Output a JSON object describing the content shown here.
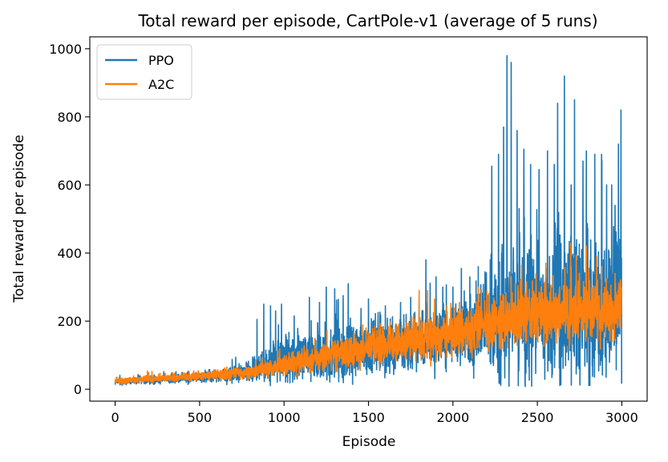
{
  "chart_data": {
    "type": "line",
    "title": "Total reward per episode, CartPole-v1 (average of 5 runs)",
    "xlabel": "Episode",
    "ylabel": "Total reward per episode",
    "xlim": [
      -150,
      3150
    ],
    "ylim": [
      -35,
      1035
    ],
    "xticks": [
      0,
      500,
      1000,
      1500,
      2000,
      2500,
      3000
    ],
    "yticks": [
      0,
      200,
      400,
      600,
      800,
      1000
    ],
    "grid": false,
    "legend_position": "top-left",
    "series": [
      {
        "name": "PPO",
        "color": "#1f77b4",
        "episodes": 3000,
        "trend": [
          [
            0,
            22
          ],
          [
            500,
            35
          ],
          [
            800,
            50
          ],
          [
            1000,
            85
          ],
          [
            1300,
            105
          ],
          [
            1600,
            125
          ],
          [
            2000,
            155
          ],
          [
            2200,
            185
          ],
          [
            2400,
            220
          ],
          [
            2700,
            240
          ],
          [
            3000,
            260
          ]
        ],
        "noise": [
          [
            0,
            8
          ],
          [
            500,
            12
          ],
          [
            800,
            25
          ],
          [
            1000,
            55
          ],
          [
            1300,
            70
          ],
          [
            1600,
            60
          ],
          [
            2000,
            70
          ],
          [
            2200,
            110
          ],
          [
            2400,
            180
          ],
          [
            2700,
            180
          ],
          [
            3000,
            170
          ]
        ],
        "peaks": [
          [
            840,
            205
          ],
          [
            880,
            250
          ],
          [
            920,
            245
          ],
          [
            950,
            230
          ],
          [
            985,
            250
          ],
          [
            1060,
            215
          ],
          [
            1150,
            270
          ],
          [
            1210,
            255
          ],
          [
            1250,
            300
          ],
          [
            1300,
            295
          ],
          [
            1350,
            275
          ],
          [
            1380,
            310
          ],
          [
            1500,
            265
          ],
          [
            1600,
            245
          ],
          [
            1690,
            255
          ],
          [
            1750,
            270
          ],
          [
            1800,
            255
          ],
          [
            1840,
            380
          ],
          [
            1900,
            330
          ],
          [
            1940,
            300
          ],
          [
            2000,
            300
          ],
          [
            2050,
            355
          ],
          [
            2100,
            330
          ],
          [
            2150,
            360
          ],
          [
            2190,
            345
          ],
          [
            2230,
            655
          ],
          [
            2270,
            690
          ],
          [
            2300,
            770
          ],
          [
            2320,
            980
          ],
          [
            2345,
            960
          ],
          [
            2380,
            760
          ],
          [
            2420,
            705
          ],
          [
            2460,
            660
          ],
          [
            2510,
            645
          ],
          [
            2560,
            700
          ],
          [
            2600,
            660
          ],
          [
            2620,
            840
          ],
          [
            2660,
            920
          ],
          [
            2700,
            600
          ],
          [
            2720,
            850
          ],
          [
            2770,
            670
          ],
          [
            2790,
            700
          ],
          [
            2840,
            690
          ],
          [
            2880,
            690
          ],
          [
            2910,
            600
          ],
          [
            2940,
            600
          ],
          [
            2960,
            540
          ],
          [
            2980,
            720
          ],
          [
            2995,
            820
          ]
        ]
      },
      {
        "name": "A2C",
        "color": "#ff7f0e",
        "episodes": 3000,
        "trend": [
          [
            0,
            24
          ],
          [
            500,
            38
          ],
          [
            800,
            50
          ],
          [
            1000,
            70
          ],
          [
            1300,
            100
          ],
          [
            1600,
            130
          ],
          [
            2000,
            160
          ],
          [
            2200,
            190
          ],
          [
            2400,
            215
          ],
          [
            2700,
            225
          ],
          [
            3000,
            240
          ]
        ],
        "noise": [
          [
            0,
            7
          ],
          [
            500,
            10
          ],
          [
            800,
            15
          ],
          [
            1000,
            25
          ],
          [
            1300,
            35
          ],
          [
            1600,
            45
          ],
          [
            2000,
            50
          ],
          [
            2200,
            60
          ],
          [
            2400,
            65
          ],
          [
            2700,
            70
          ],
          [
            3000,
            70
          ]
        ],
        "peaks": [
          [
            1800,
            290
          ],
          [
            1850,
            290
          ],
          [
            2150,
            300
          ],
          [
            2400,
            320
          ],
          [
            2550,
            370
          ],
          [
            2700,
            360
          ],
          [
            2790,
            420
          ],
          [
            2880,
            360
          ],
          [
            2960,
            340
          ]
        ]
      }
    ]
  }
}
